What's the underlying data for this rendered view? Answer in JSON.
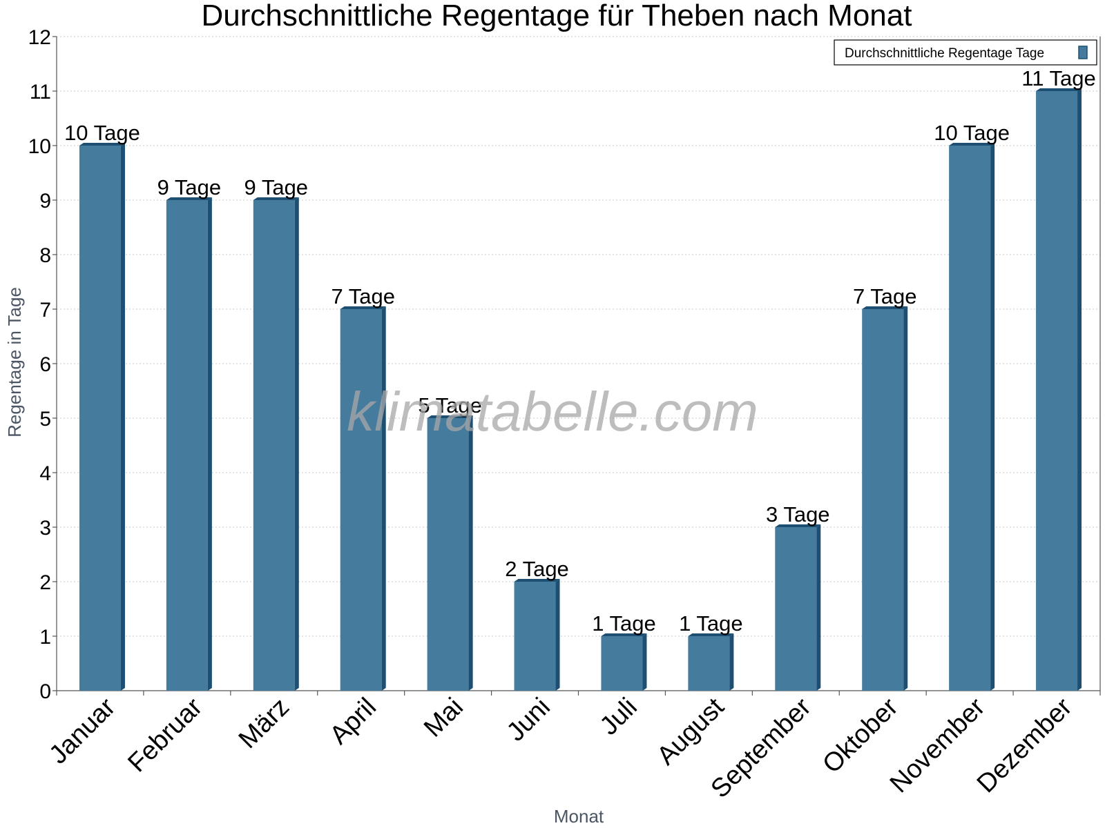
{
  "chart_data": {
    "type": "bar",
    "title": "Durchschnittliche Regentage für Theben nach Monat",
    "xlabel": "Monat",
    "ylabel": "Regentage in Tage",
    "categories": [
      "Januar",
      "Februar",
      "März",
      "April",
      "Mai",
      "Juni",
      "Juli",
      "August",
      "September",
      "Oktober",
      "November",
      "Dezember"
    ],
    "series": [
      {
        "name": "Durchschnittliche Regentage Tage",
        "values": [
          10,
          9,
          9,
          7,
          5,
          2,
          1,
          1,
          3,
          7,
          10,
          11
        ],
        "data_labels": [
          "10 Tage",
          "9 Tage",
          "9 Tage",
          "7 Tage",
          "5 Tage",
          "2 Tage",
          "1 Tage",
          "1 Tage",
          "3 Tage",
          "7 Tage",
          "10 Tage",
          "11 Tage"
        ]
      }
    ],
    "ylim": [
      0,
      12
    ],
    "yticks": [
      "0",
      "1",
      "2",
      "3",
      "4",
      "5",
      "6",
      "7",
      "8",
      "9",
      "10",
      "11",
      "12"
    ],
    "grid": true,
    "legend_position": "top-right",
    "colors": {
      "bar": "#457b9d",
      "bar_side": "#1d4f73",
      "bar_top": "#1d4f73",
      "grid": "#c8c8c8",
      "axis": "#555555"
    }
  },
  "watermark": "klimatabelle.com"
}
